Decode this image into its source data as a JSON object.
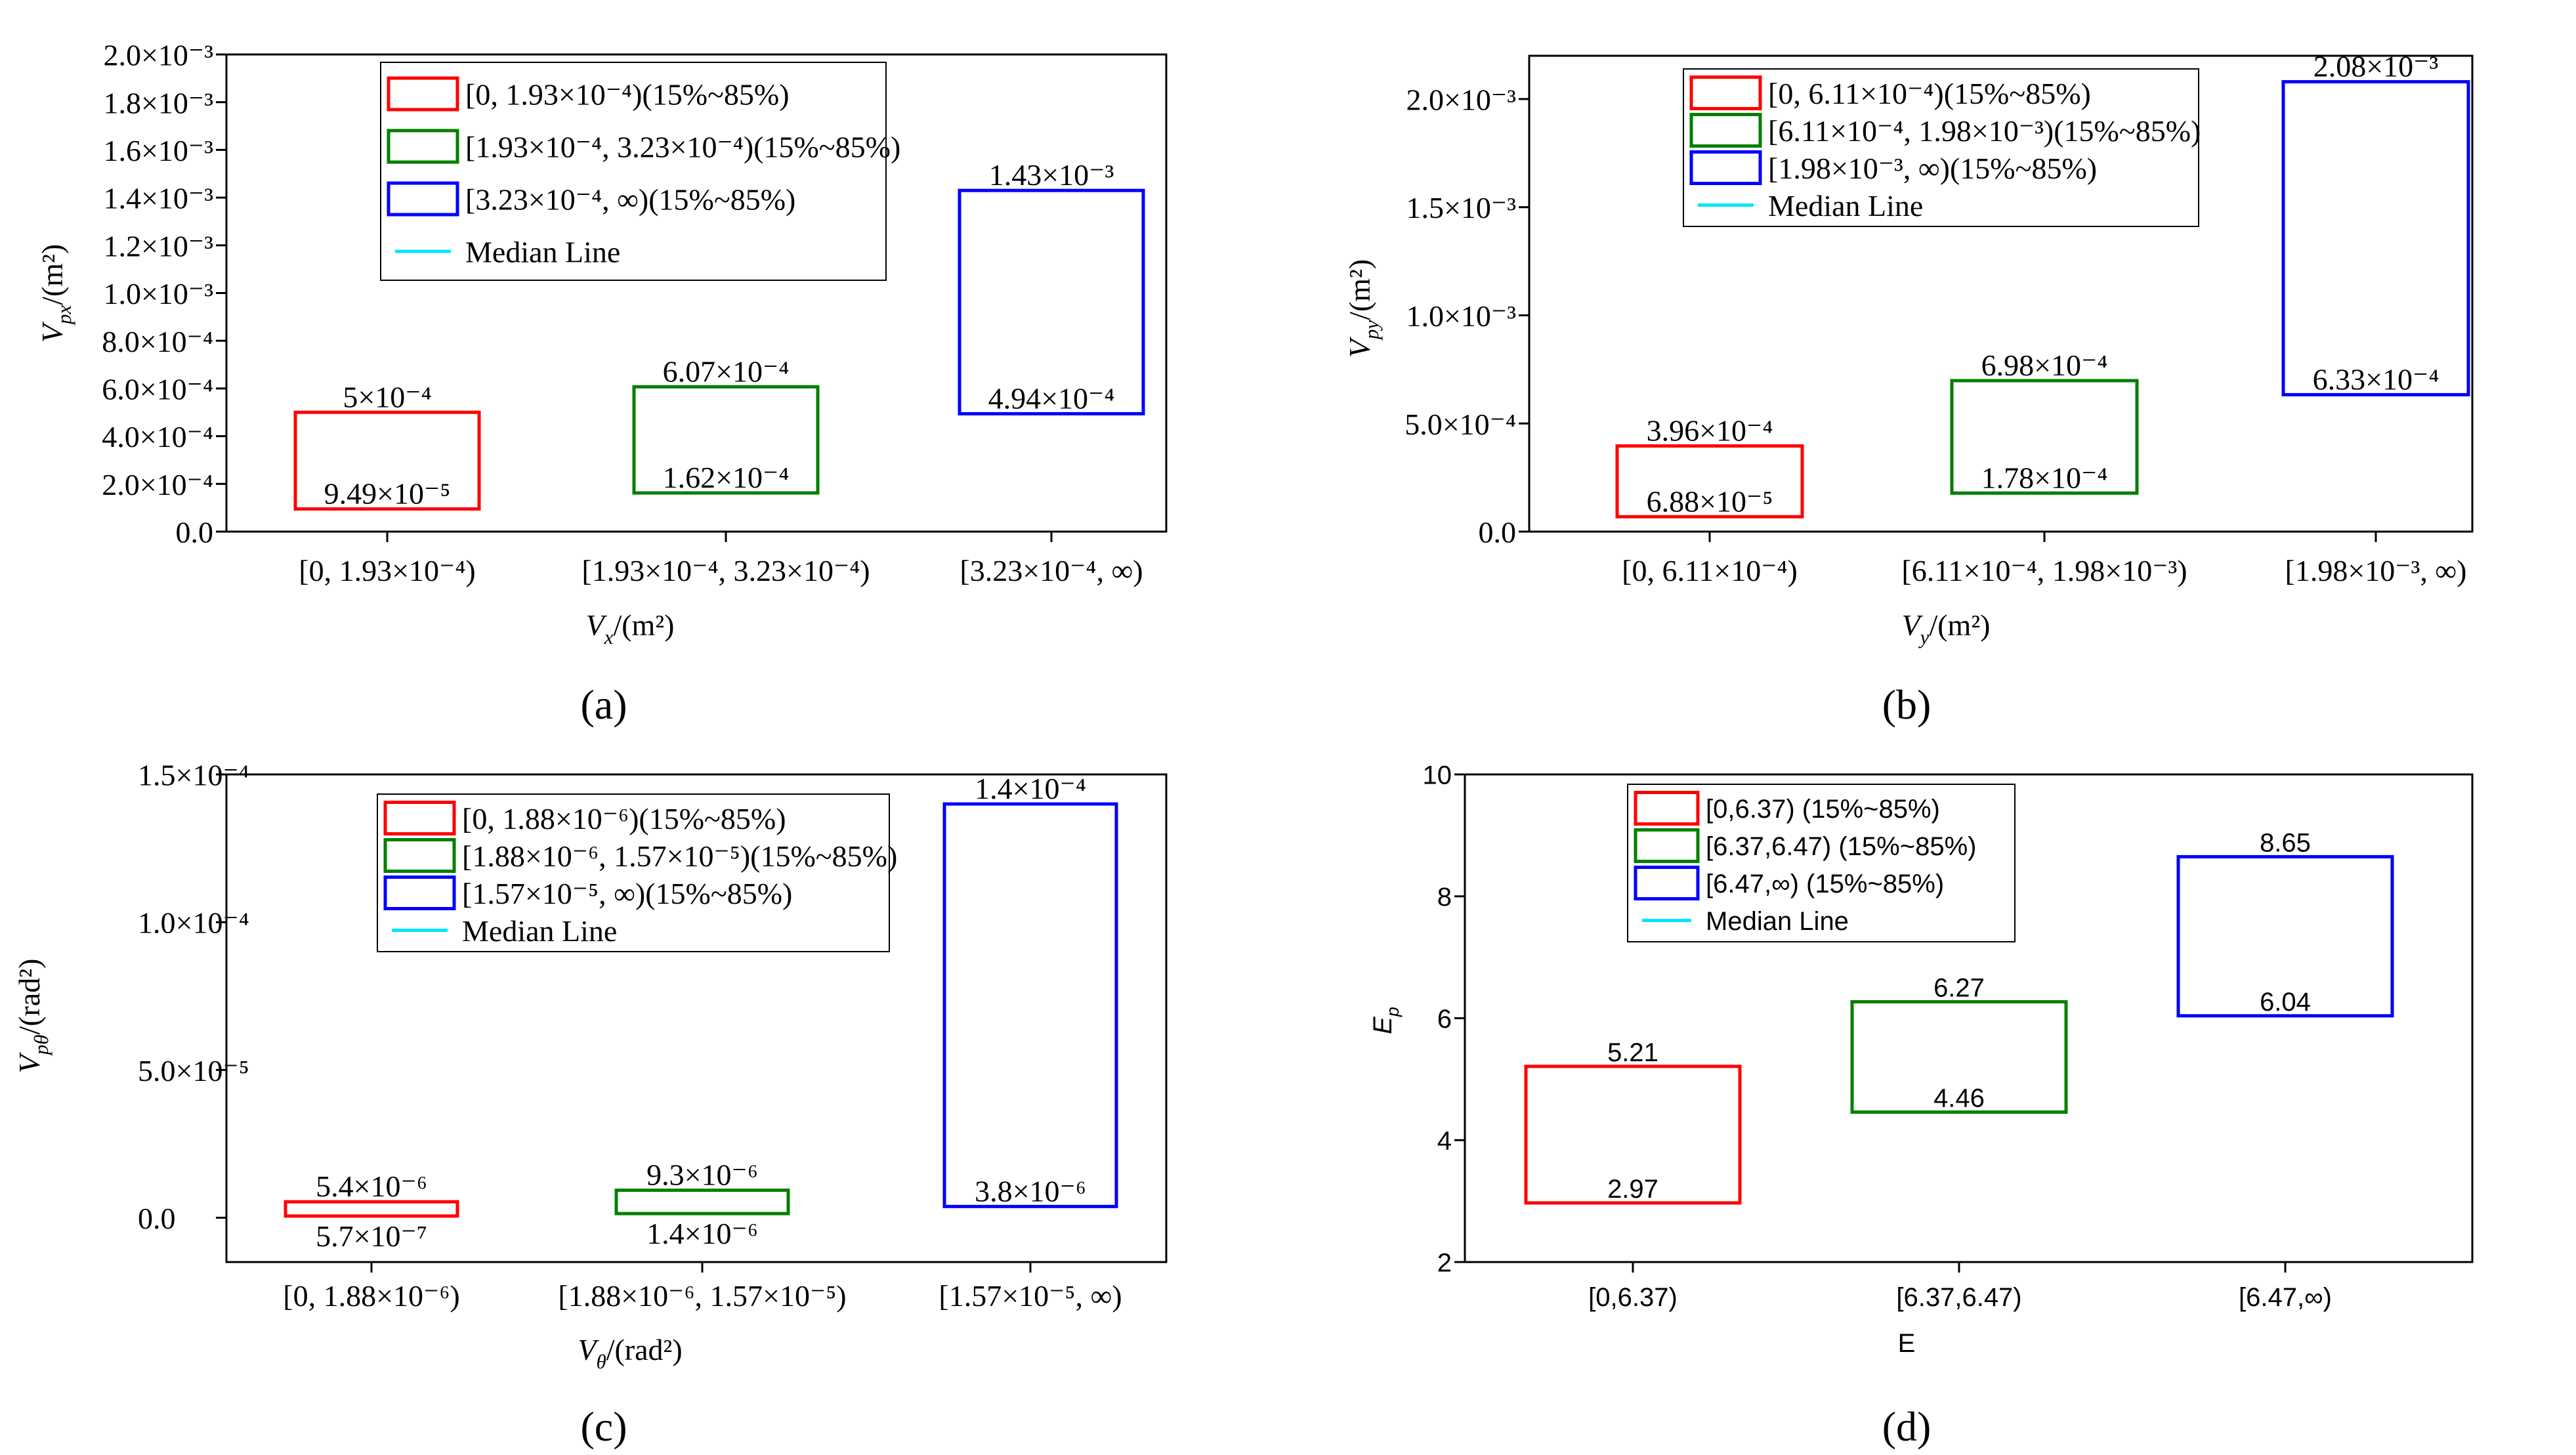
{
  "figure": {
    "colors": {
      "red": "#ff0000",
      "green": "#008000",
      "blue": "#0000ff",
      "median": "#00e5ff",
      "axis": "#000000"
    }
  },
  "chart_data": [
    {
      "id": "a",
      "type": "box",
      "caption": "(a)",
      "ylabel": "V_px/(m²)",
      "xlabel": "V_x/(m²)",
      "ylim": [
        0,
        0.002
      ],
      "yticks": [
        "0.0",
        "2.0×10⁻⁴",
        "4.0×10⁻⁴",
        "6.0×10⁻⁴",
        "8.0×10⁻⁴",
        "1.0×10⁻³",
        "1.2×10⁻³",
        "1.4×10⁻³",
        "1.6×10⁻³",
        "1.8×10⁻³",
        "2.0×10⁻³"
      ],
      "categories": [
        "[0, 1.93×10⁻⁴)",
        "[1.93×10⁻⁴, 3.23×10⁻⁴)",
        "[3.23×10⁻⁴, ∞)"
      ],
      "legend": [
        "[0, 1.93×10⁻⁴)(15%~85%)",
        "[1.93×10⁻⁴, 3.23×10⁻⁴)(15%~85%)",
        "[3.23×10⁻⁴, ∞)(15%~85%)",
        "Median Line"
      ],
      "boxes": [
        {
          "low": 9.49e-05,
          "high": 0.0005,
          "low_label": "9.49×10⁻⁵",
          "high_label": "5×10⁻⁴",
          "color": "red"
        },
        {
          "low": 0.000162,
          "high": 0.000607,
          "low_label": "1.62×10⁻⁴",
          "high_label": "6.07×10⁻⁴",
          "color": "green"
        },
        {
          "low": 0.000494,
          "high": 0.00143,
          "low_label": "4.94×10⁻⁴",
          "high_label": "1.43×10⁻³",
          "color": "blue"
        }
      ]
    },
    {
      "id": "b",
      "type": "box",
      "caption": "(b)",
      "ylabel": "V_py/(m²)",
      "xlabel": "V_y/(m²)",
      "ylim": [
        0,
        0.0022
      ],
      "yticks": [
        "0.0",
        "5.0×10⁻⁴",
        "1.0×10⁻³",
        "1.5×10⁻³",
        "2.0×10⁻³"
      ],
      "categories": [
        "[0, 6.11×10⁻⁴)",
        "[6.11×10⁻⁴, 1.98×10⁻³)",
        "[1.98×10⁻³, ∞)"
      ],
      "legend": [
        "[0, 6.11×10⁻⁴)(15%~85%)",
        "[6.11×10⁻⁴, 1.98×10⁻³)(15%~85%)",
        "[1.98×10⁻³, ∞)(15%~85%)",
        "Median Line"
      ],
      "boxes": [
        {
          "low": 6.88e-05,
          "high": 0.000396,
          "low_label": "6.88×10⁻⁵",
          "high_label": "3.96×10⁻⁴",
          "color": "red"
        },
        {
          "low": 0.000178,
          "high": 0.000698,
          "low_label": "1.78×10⁻⁴",
          "high_label": "6.98×10⁻⁴",
          "color": "green"
        },
        {
          "low": 0.000633,
          "high": 0.00208,
          "low_label": "6.33×10⁻⁴",
          "high_label": "2.08×10⁻³",
          "color": "blue"
        }
      ]
    },
    {
      "id": "c",
      "type": "box",
      "caption": "(c)",
      "ylabel": "V_pθ/(rad²)",
      "xlabel": "V_θ/(rad²)",
      "ylim": [
        -1.5e-05,
        0.00015
      ],
      "yticks": [
        "0.0",
        "5.0×10⁻⁵",
        "1.0×10⁻⁴",
        "1.5×10⁻⁴"
      ],
      "categories": [
        "[0, 1.88×10⁻⁶)",
        "[1.88×10⁻⁶, 1.57×10⁻⁵)",
        "[1.57×10⁻⁵, ∞)"
      ],
      "legend": [
        "[0, 1.88×10⁻⁶)(15%~85%)",
        "[1.88×10⁻⁶, 1.57×10⁻⁵)(15%~85%)",
        "[1.57×10⁻⁵, ∞)(15%~85%)",
        "Median Line"
      ],
      "boxes": [
        {
          "low": 5.7e-07,
          "high": 5.4e-06,
          "low_label": "5.7×10⁻⁷",
          "high_label": "5.4×10⁻⁶",
          "color": "red"
        },
        {
          "low": 1.4e-06,
          "high": 9.3e-06,
          "low_label": "1.4×10⁻⁶",
          "high_label": "9.3×10⁻⁶",
          "color": "green"
        },
        {
          "low": 3.8e-06,
          "high": 0.00014,
          "low_label": "3.8×10⁻⁶",
          "high_label": "1.4×10⁻⁴",
          "color": "blue"
        }
      ]
    },
    {
      "id": "d",
      "type": "box",
      "caption": "(d)",
      "ylabel": "E_p",
      "xlabel": "E",
      "ylim": [
        2,
        10
      ],
      "yticks": [
        "2",
        "4",
        "6",
        "8",
        "10"
      ],
      "categories": [
        "[0,6.37)",
        "[6.37,6.47)",
        "[6.47,∞)"
      ],
      "legend": [
        "[0,6.37) (15%~85%)",
        "[6.37,6.47) (15%~85%)",
        "[6.47,∞) (15%~85%)",
        "Median Line"
      ],
      "boxes": [
        {
          "low": 2.97,
          "high": 5.21,
          "low_label": "2.97",
          "high_label": "5.21",
          "color": "red"
        },
        {
          "low": 4.46,
          "high": 6.27,
          "low_label": "4.46",
          "high_label": "6.27",
          "color": "green"
        },
        {
          "low": 6.04,
          "high": 8.65,
          "low_label": "6.04",
          "high_label": "8.65",
          "color": "blue"
        }
      ]
    }
  ]
}
